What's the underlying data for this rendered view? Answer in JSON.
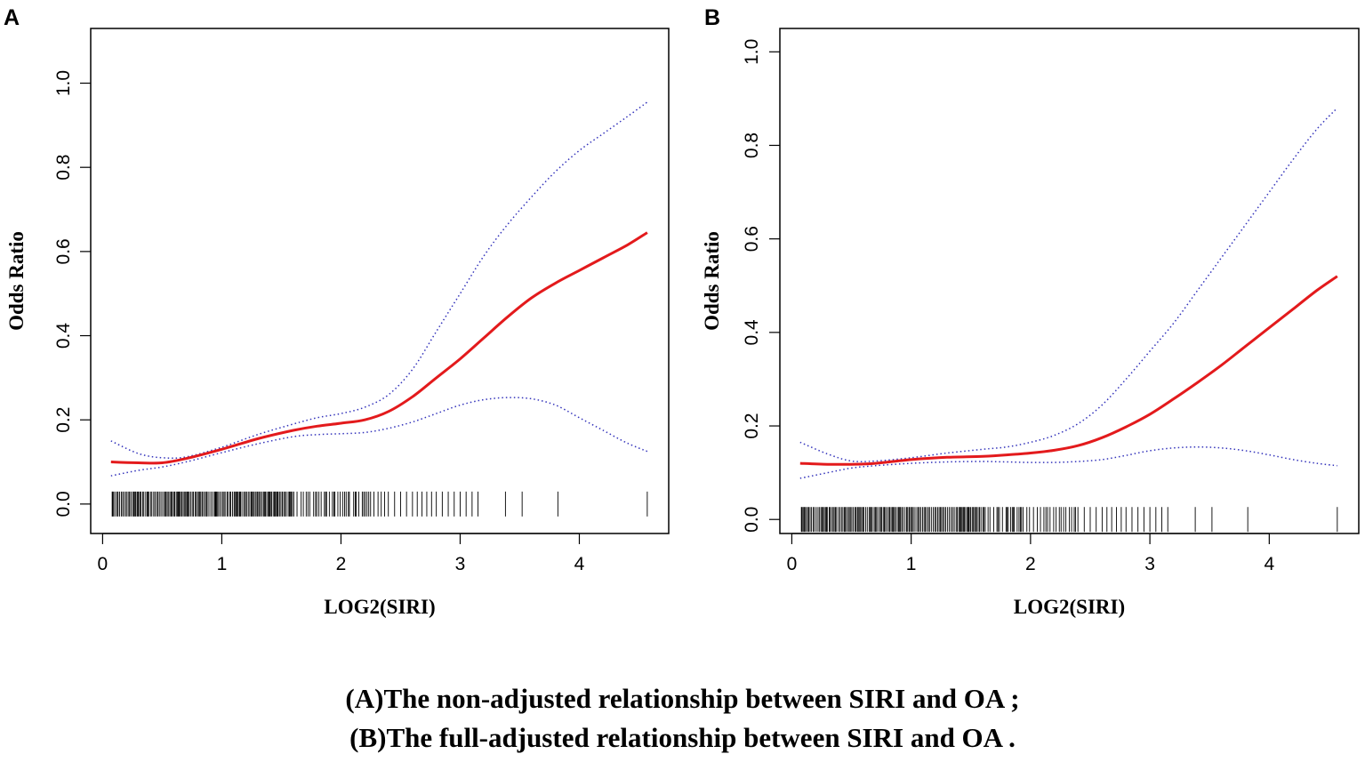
{
  "chart_data": [
    {
      "type": "line",
      "panel_label": "A",
      "xlabel": "LOG2(SIRI)",
      "ylabel": "Odds Ratio",
      "xlim": [
        -0.1,
        4.75
      ],
      "ylim": [
        -0.07,
        1.13
      ],
      "x_ticks": [
        0,
        1,
        2,
        3,
        4
      ],
      "x_tick_labels": [
        "0",
        "1",
        "2",
        "3",
        "4"
      ],
      "y_ticks": [
        0.0,
        0.2,
        0.4,
        0.6,
        0.8,
        1.0
      ],
      "y_tick_labels": [
        "0.0",
        "0.2",
        "0.4",
        "0.6",
        "0.8",
        "1.0"
      ],
      "series": [
        {
          "name": "Odds Ratio",
          "style": "solid",
          "color": "#e31a1c",
          "x": [
            0.07,
            0.3,
            0.5,
            0.7,
            1.0,
            1.3,
            1.6,
            1.8,
            2.0,
            2.2,
            2.4,
            2.6,
            2.8,
            3.0,
            3.2,
            3.4,
            3.6,
            3.8,
            4.0,
            4.2,
            4.4,
            4.57
          ],
          "y": [
            0.1,
            0.098,
            0.098,
            0.108,
            0.13,
            0.155,
            0.175,
            0.185,
            0.192,
            0.2,
            0.22,
            0.255,
            0.3,
            0.345,
            0.395,
            0.445,
            0.49,
            0.525,
            0.555,
            0.585,
            0.615,
            0.645
          ]
        },
        {
          "name": "Upper 95% CI",
          "style": "dotted",
          "color": "#3333bb",
          "x": [
            0.07,
            0.3,
            0.5,
            0.7,
            1.0,
            1.3,
            1.6,
            1.8,
            2.0,
            2.2,
            2.4,
            2.6,
            2.8,
            3.0,
            3.2,
            3.4,
            3.6,
            3.8,
            4.0,
            4.2,
            4.4,
            4.57
          ],
          "y": [
            0.15,
            0.12,
            0.11,
            0.112,
            0.135,
            0.165,
            0.19,
            0.205,
            0.215,
            0.23,
            0.26,
            0.32,
            0.41,
            0.5,
            0.59,
            0.665,
            0.73,
            0.79,
            0.84,
            0.88,
            0.92,
            0.955
          ]
        },
        {
          "name": "Lower 95% CI",
          "style": "dotted",
          "color": "#3333bb",
          "x": [
            0.07,
            0.3,
            0.5,
            0.7,
            1.0,
            1.3,
            1.6,
            1.8,
            2.0,
            2.2,
            2.4,
            2.6,
            2.8,
            3.0,
            3.2,
            3.4,
            3.6,
            3.8,
            4.0,
            4.2,
            4.4,
            4.57
          ],
          "y": [
            0.067,
            0.08,
            0.088,
            0.1,
            0.122,
            0.143,
            0.16,
            0.165,
            0.167,
            0.17,
            0.18,
            0.195,
            0.215,
            0.235,
            0.248,
            0.253,
            0.25,
            0.235,
            0.205,
            0.175,
            0.145,
            0.125
          ]
        }
      ],
      "rug": {
        "dense_range": [
          0.08,
          2.4
        ],
        "sparse_x": [
          2.45,
          2.5,
          2.55,
          2.6,
          2.64,
          2.68,
          2.72,
          2.76,
          2.8,
          2.85,
          2.9,
          2.95,
          3.0,
          3.05,
          3.1,
          3.15,
          3.38,
          3.52,
          3.82,
          4.57
        ]
      }
    },
    {
      "type": "line",
      "panel_label": "B",
      "xlabel": "LOG2(SIRI)",
      "ylabel": "Odds Ratio",
      "xlim": [
        -0.1,
        4.75
      ],
      "ylim": [
        -0.03,
        1.05
      ],
      "x_ticks": [
        0,
        1,
        2,
        3,
        4
      ],
      "x_tick_labels": [
        "0",
        "1",
        "2",
        "3",
        "4"
      ],
      "y_ticks": [
        0.0,
        0.2,
        0.4,
        0.6,
        0.8,
        1.0
      ],
      "y_tick_labels": [
        "0.0",
        "0.2",
        "0.4",
        "0.6",
        "0.8",
        "1.0"
      ],
      "series": [
        {
          "name": "Odds Ratio",
          "style": "solid",
          "color": "#e31a1c",
          "x": [
            0.07,
            0.3,
            0.5,
            0.7,
            1.0,
            1.3,
            1.6,
            1.8,
            2.0,
            2.2,
            2.4,
            2.6,
            2.8,
            3.0,
            3.2,
            3.4,
            3.6,
            3.8,
            4.0,
            4.2,
            4.4,
            4.57
          ],
          "y": [
            0.12,
            0.118,
            0.118,
            0.12,
            0.128,
            0.133,
            0.135,
            0.138,
            0.142,
            0.148,
            0.158,
            0.175,
            0.198,
            0.225,
            0.258,
            0.293,
            0.33,
            0.37,
            0.41,
            0.45,
            0.49,
            0.52
          ]
        },
        {
          "name": "Upper 95% CI",
          "style": "dotted",
          "color": "#3333bb",
          "x": [
            0.07,
            0.3,
            0.5,
            0.7,
            1.0,
            1.3,
            1.6,
            1.8,
            2.0,
            2.2,
            2.4,
            2.6,
            2.8,
            3.0,
            3.2,
            3.4,
            3.6,
            3.8,
            4.0,
            4.2,
            4.4,
            4.57
          ],
          "y": [
            0.165,
            0.14,
            0.125,
            0.125,
            0.132,
            0.142,
            0.15,
            0.155,
            0.165,
            0.18,
            0.205,
            0.245,
            0.3,
            0.36,
            0.42,
            0.49,
            0.56,
            0.63,
            0.7,
            0.77,
            0.835,
            0.88
          ]
        },
        {
          "name": "Lower 95% CI",
          "style": "dotted",
          "color": "#3333bb",
          "x": [
            0.07,
            0.3,
            0.5,
            0.7,
            1.0,
            1.3,
            1.6,
            1.8,
            2.0,
            2.2,
            2.4,
            2.6,
            2.8,
            3.0,
            3.2,
            3.4,
            3.6,
            3.8,
            4.0,
            4.2,
            4.4,
            4.57
          ],
          "y": [
            0.088,
            0.1,
            0.11,
            0.115,
            0.12,
            0.123,
            0.124,
            0.123,
            0.122,
            0.122,
            0.124,
            0.128,
            0.137,
            0.147,
            0.153,
            0.155,
            0.153,
            0.147,
            0.138,
            0.128,
            0.12,
            0.115
          ]
        }
      ],
      "rug": {
        "dense_range": [
          0.08,
          2.4
        ],
        "sparse_x": [
          2.45,
          2.5,
          2.55,
          2.6,
          2.64,
          2.68,
          2.72,
          2.76,
          2.8,
          2.85,
          2.9,
          2.95,
          3.0,
          3.05,
          3.1,
          3.15,
          3.38,
          3.52,
          3.82,
          4.57
        ]
      }
    }
  ],
  "caption": {
    "line_a": "(A)The non-adjusted relationship between SIRI and OA ;",
    "line_b": "(B)The full-adjusted relationship between SIRI and OA ."
  }
}
